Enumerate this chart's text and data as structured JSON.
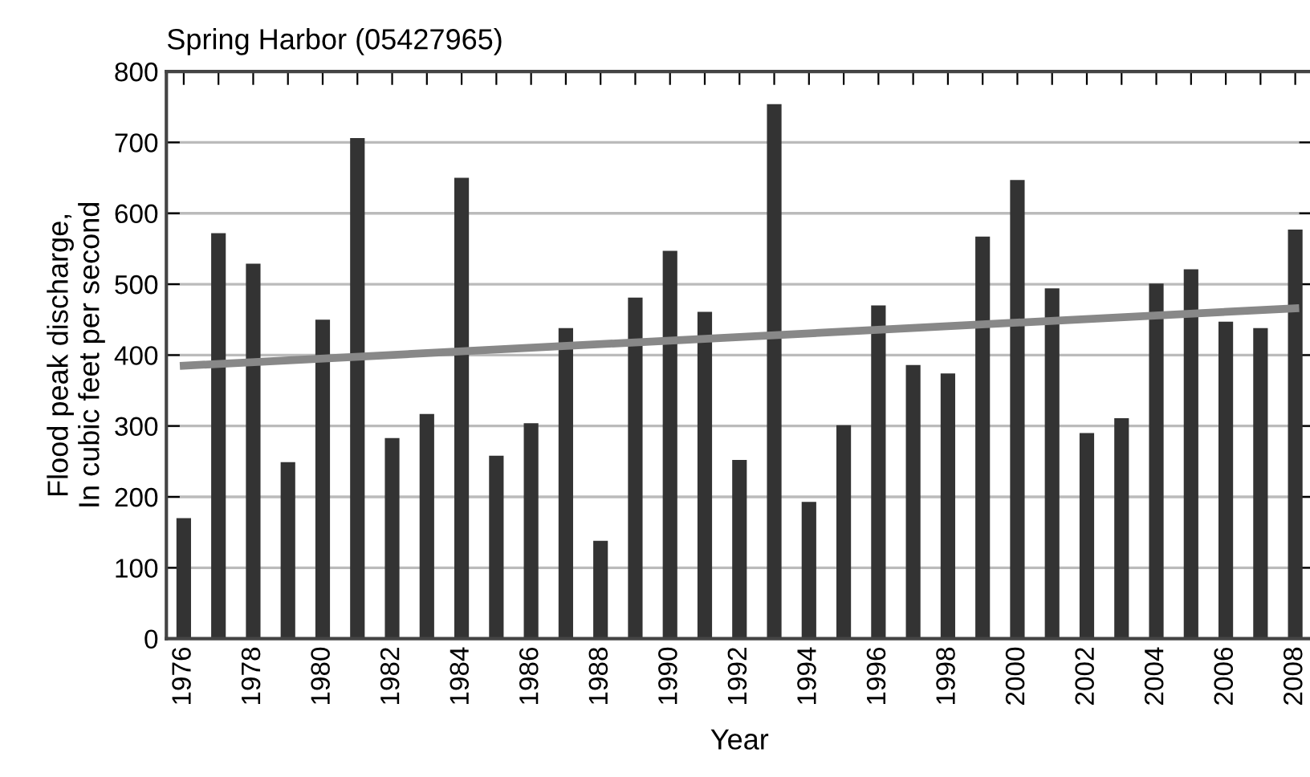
{
  "chart_data": {
    "type": "bar",
    "title": "Spring Harbor (05427965)",
    "xlabel": "Year",
    "ylabel": "Flood peak discharge,\nIn cubic feet per second",
    "x": [
      1976,
      1977,
      1978,
      1979,
      1980,
      1981,
      1982,
      1983,
      1984,
      1985,
      1986,
      1987,
      1988,
      1989,
      1990,
      1991,
      1992,
      1993,
      1994,
      1995,
      1996,
      1997,
      1998,
      1999,
      2000,
      2001,
      2002,
      2003,
      2004,
      2005,
      2006,
      2007,
      2008
    ],
    "series": [
      {
        "color": "#333333",
        "values": [
          170,
          572,
          529,
          249,
          450,
          706,
          283,
          317,
          650,
          258,
          304,
          438,
          138,
          481,
          547,
          461,
          252,
          754,
          193,
          301,
          470,
          386,
          374,
          567,
          647,
          494,
          290,
          311,
          501,
          521,
          447,
          438,
          577
        ]
      },
      {
        "type": "line",
        "color": "#888888",
        "x": [
          1976,
          2008
        ],
        "values": [
          385,
          466
        ],
        "marker": "none",
        "line_style": "solid"
      }
    ],
    "xlim": [
      1975.5,
      2008.5
    ],
    "xticks": [
      1976,
      {
        "value": 1977,
        "label": null
      },
      1978,
      {
        "value": 1979,
        "label": null
      },
      1980,
      {
        "value": 1981,
        "label": null
      },
      1982,
      {
        "value": 1983,
        "label": null
      },
      1984,
      {
        "value": 1985,
        "label": null
      },
      1986,
      {
        "value": 1987,
        "label": null
      },
      1988,
      {
        "value": 1989,
        "label": null
      },
      1990,
      {
        "value": 1991,
        "label": null
      },
      1992,
      {
        "value": 1993,
        "label": null
      },
      1994,
      {
        "value": 1995,
        "label": null
      },
      1996,
      {
        "value": 1997,
        "label": null
      },
      1998,
      {
        "value": 1999,
        "label": null
      },
      2000,
      {
        "value": 2001,
        "label": null
      },
      2002,
      {
        "value": 2003,
        "label": null
      },
      2004,
      {
        "value": 2005,
        "label": null
      },
      2006,
      {
        "value": 2007,
        "label": null
      },
      2008
    ],
    "ylim": [
      0,
      800
    ],
    "yticks": [
      0,
      100,
      200,
      300,
      400,
      500,
      600,
      700,
      800
    ],
    "grid": "y"
  }
}
